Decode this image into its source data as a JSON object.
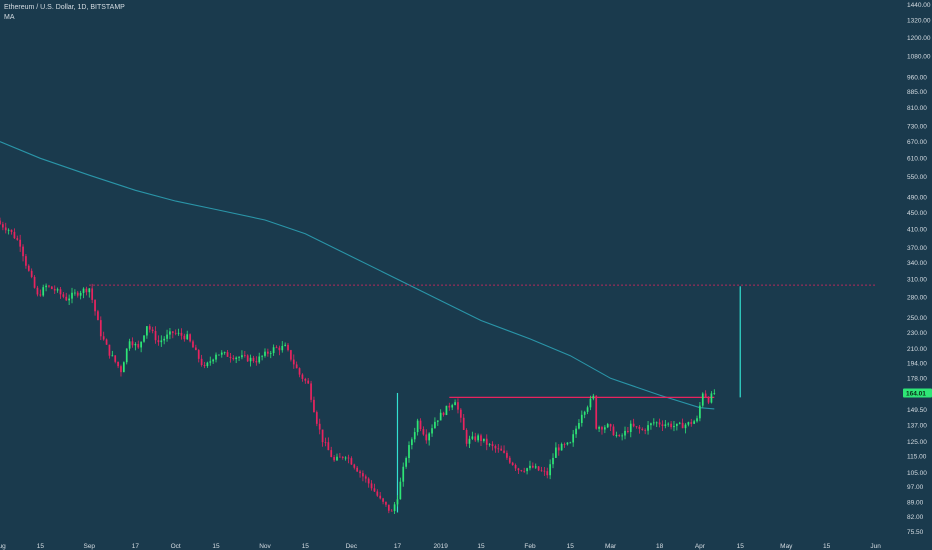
{
  "legend": {
    "title": "Ethereum / U.S. Dollar, 1D, BITSTAMP",
    "indicator": "MA"
  },
  "colors": {
    "background": "#1a3a4d",
    "up": "#2ee676",
    "down": "#e8245f",
    "ma_line": "#2a95a8",
    "resistance": "#e8245f",
    "marker": "#33e0d0",
    "axis_text": "#d6dde3",
    "price_tag": "#2ee676"
  },
  "chart_data": {
    "type": "candlestick",
    "symbol": "ETHUSD",
    "interval": "1D",
    "exchange": "BITSTAMP",
    "y_scale": "log",
    "ylim": [
      72,
      1480
    ],
    "y_ticks": [
      1440,
      1320,
      1200,
      1080,
      960,
      885,
      810,
      730,
      670,
      610,
      550,
      490,
      450,
      410,
      370,
      340,
      310,
      280,
      250,
      230,
      210,
      194,
      178,
      164,
      149.5,
      137,
      125,
      115,
      105,
      97,
      89,
      82,
      75.5
    ],
    "y_tick_labels": [
      "1440.00",
      "1320.00",
      "1200.00",
      "1080.00",
      "960.00",
      "885.00",
      "810.00",
      "730.00",
      "670.00",
      "610.00",
      "550.00",
      "490.00",
      "450.00",
      "410.00",
      "370.00",
      "340.00",
      "310.00",
      "280.00",
      "250.00",
      "230.00",
      "210.00",
      "194.00",
      "178.00",
      "164.01",
      "149.50",
      "137.00",
      "125.00",
      "115.00",
      "105.00",
      "97.00",
      "89.00",
      "82.00",
      "75.50"
    ],
    "x_range": [
      "2018-08-01",
      "2019-06-06"
    ],
    "x_ticks": [
      {
        "date": "2018-08-01",
        "label": "Aug"
      },
      {
        "date": "2018-08-15",
        "label": "15"
      },
      {
        "date": "2018-09-01",
        "label": "Sep"
      },
      {
        "date": "2018-09-17",
        "label": "17"
      },
      {
        "date": "2018-10-01",
        "label": "Oct"
      },
      {
        "date": "2018-10-15",
        "label": "15"
      },
      {
        "date": "2018-11-01",
        "label": "Nov"
      },
      {
        "date": "2018-11-15",
        "label": "15"
      },
      {
        "date": "2018-12-01",
        "label": "Dec"
      },
      {
        "date": "2018-12-17",
        "label": "17"
      },
      {
        "date": "2019-01-01",
        "label": "2019"
      },
      {
        "date": "2019-01-15",
        "label": "15"
      },
      {
        "date": "2019-02-01",
        "label": "Feb"
      },
      {
        "date": "2019-02-15",
        "label": "15"
      },
      {
        "date": "2019-03-01",
        "label": "Mar"
      },
      {
        "date": "2019-03-18",
        "label": "18"
      },
      {
        "date": "2019-04-01",
        "label": "Apr"
      },
      {
        "date": "2019-04-15",
        "label": "15"
      },
      {
        "date": "2019-05-01",
        "label": "May"
      },
      {
        "date": "2019-05-15",
        "label": "15"
      },
      {
        "date": "2019-06-01",
        "label": "Jun"
      }
    ],
    "last_price": 164.01,
    "last_price_label": "164.01",
    "key_closes": [
      {
        "date": "2018-08-01",
        "close": 422
      },
      {
        "date": "2018-08-04",
        "close": 410
      },
      {
        "date": "2018-08-08",
        "close": 378
      },
      {
        "date": "2018-08-10",
        "close": 338
      },
      {
        "date": "2018-08-14",
        "close": 282
      },
      {
        "date": "2018-08-17",
        "close": 298
      },
      {
        "date": "2018-08-20",
        "close": 292
      },
      {
        "date": "2018-08-24",
        "close": 278
      },
      {
        "date": "2018-08-29",
        "close": 290
      },
      {
        "date": "2018-09-01",
        "close": 295
      },
      {
        "date": "2018-09-05",
        "close": 228
      },
      {
        "date": "2018-09-08",
        "close": 205
      },
      {
        "date": "2018-09-12",
        "close": 186
      },
      {
        "date": "2018-09-15",
        "close": 222
      },
      {
        "date": "2018-09-18",
        "close": 210
      },
      {
        "date": "2018-09-21",
        "close": 240
      },
      {
        "date": "2018-09-25",
        "close": 218
      },
      {
        "date": "2018-09-30",
        "close": 230
      },
      {
        "date": "2018-10-05",
        "close": 224
      },
      {
        "date": "2018-10-11",
        "close": 188
      },
      {
        "date": "2018-10-15",
        "close": 205
      },
      {
        "date": "2018-10-22",
        "close": 201
      },
      {
        "date": "2018-10-29",
        "close": 197
      },
      {
        "date": "2018-11-04",
        "close": 210
      },
      {
        "date": "2018-11-08",
        "close": 212
      },
      {
        "date": "2018-11-13",
        "close": 182
      },
      {
        "date": "2018-11-16",
        "close": 172
      },
      {
        "date": "2018-11-19",
        "close": 140
      },
      {
        "date": "2018-11-21",
        "close": 126
      },
      {
        "date": "2018-11-25",
        "close": 112
      },
      {
        "date": "2018-11-29",
        "close": 116
      },
      {
        "date": "2018-12-04",
        "close": 105
      },
      {
        "date": "2018-12-08",
        "close": 97
      },
      {
        "date": "2018-12-11",
        "close": 90
      },
      {
        "date": "2018-12-15",
        "close": 84
      },
      {
        "date": "2018-12-17",
        "close": 92
      },
      {
        "date": "2018-12-20",
        "close": 115
      },
      {
        "date": "2018-12-24",
        "close": 140
      },
      {
        "date": "2018-12-27",
        "close": 128
      },
      {
        "date": "2018-12-30",
        "close": 140
      },
      {
        "date": "2019-01-06",
        "close": 158
      },
      {
        "date": "2019-01-10",
        "close": 125
      },
      {
        "date": "2019-01-14",
        "close": 128
      },
      {
        "date": "2019-01-18",
        "close": 122
      },
      {
        "date": "2019-01-22",
        "close": 118
      },
      {
        "date": "2019-01-28",
        "close": 107
      },
      {
        "date": "2019-02-02",
        "close": 108
      },
      {
        "date": "2019-02-07",
        "close": 104
      },
      {
        "date": "2019-02-10",
        "close": 120
      },
      {
        "date": "2019-02-15",
        "close": 123
      },
      {
        "date": "2019-02-19",
        "close": 147
      },
      {
        "date": "2019-02-23",
        "close": 160
      },
      {
        "date": "2019-02-24",
        "close": 136
      },
      {
        "date": "2019-02-28",
        "close": 136
      },
      {
        "date": "2019-03-04",
        "close": 127
      },
      {
        "date": "2019-03-08",
        "close": 136
      },
      {
        "date": "2019-03-12",
        "close": 133
      },
      {
        "date": "2019-03-16",
        "close": 139
      },
      {
        "date": "2019-03-20",
        "close": 138
      },
      {
        "date": "2019-03-24",
        "close": 136
      },
      {
        "date": "2019-03-28",
        "close": 138
      },
      {
        "date": "2019-03-31",
        "close": 141
      },
      {
        "date": "2019-04-02",
        "close": 165
      },
      {
        "date": "2019-04-04",
        "close": 158
      },
      {
        "date": "2019-04-06",
        "close": 164.01
      }
    ],
    "moving_average": [
      {
        "date": "2018-08-01",
        "value": 670
      },
      {
        "date": "2018-08-15",
        "value": 610
      },
      {
        "date": "2018-09-01",
        "value": 555
      },
      {
        "date": "2018-09-17",
        "value": 510
      },
      {
        "date": "2018-10-01",
        "value": 480
      },
      {
        "date": "2018-10-15",
        "value": 458
      },
      {
        "date": "2018-11-01",
        "value": 432
      },
      {
        "date": "2018-11-15",
        "value": 400
      },
      {
        "date": "2018-12-01",
        "value": 352
      },
      {
        "date": "2018-12-17",
        "value": 310
      },
      {
        "date": "2019-01-01",
        "value": 275
      },
      {
        "date": "2019-01-15",
        "value": 246
      },
      {
        "date": "2019-02-01",
        "value": 222
      },
      {
        "date": "2019-02-15",
        "value": 202
      },
      {
        "date": "2019-03-01",
        "value": 178
      },
      {
        "date": "2019-03-18",
        "value": 162
      },
      {
        "date": "2019-04-01",
        "value": 151
      },
      {
        "date": "2019-04-06",
        "value": 150
      }
    ],
    "annotations": {
      "resistance_dotted": {
        "price": 300,
        "from": "2018-09-01",
        "to": "2019-06-01",
        "style": "dotted"
      },
      "resistance_solid": {
        "price": 160,
        "from": "2019-01-04",
        "to": "2019-04-06",
        "style": "solid"
      },
      "vertical_markers": [
        {
          "date": "2018-12-17",
          "from": 84,
          "to": 164
        },
        {
          "date": "2019-04-15",
          "from": 160,
          "to": 298
        }
      ]
    }
  }
}
